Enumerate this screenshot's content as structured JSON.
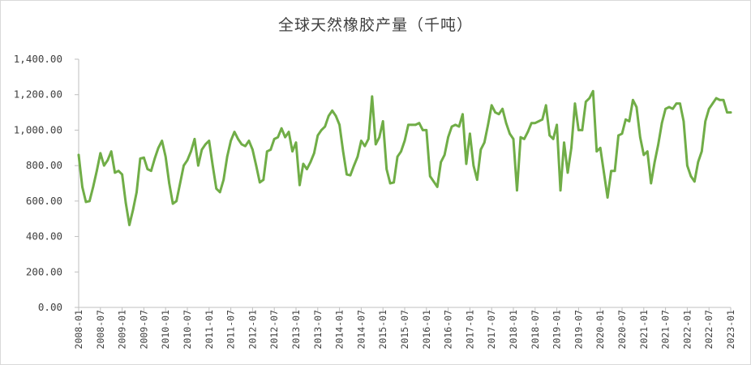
{
  "chart_data": {
    "type": "line",
    "title": "全球天然橡胶产量（千吨）",
    "xlabel": "",
    "ylabel": "",
    "ylim": [
      0,
      1400
    ],
    "grid": false,
    "legend": "none",
    "y_ticks": [
      "0.00",
      "200.00",
      "400.00",
      "600.00",
      "800.00",
      "1,000.00",
      "1,200.00",
      "1,400.00"
    ],
    "x_ticks": [
      "2008-01",
      "2008-07",
      "2009-01",
      "2009-07",
      "2010-01",
      "2010-07",
      "2011-01",
      "2011-07",
      "2012-01",
      "2012-07",
      "2013-01",
      "2013-07",
      "2014-01",
      "2014-07",
      "2015-01",
      "2015-07",
      "2016-01",
      "2016-07",
      "2017-01",
      "2017-07",
      "2018-01",
      "2018-07",
      "2019-01",
      "2019-07",
      "2020-01",
      "2020-07",
      "2021-01",
      "2021-07",
      "2022-01",
      "2022-07",
      "2023-01"
    ],
    "x_start": "2008-01",
    "x_end": "2023-01",
    "series": [
      {
        "name": "",
        "color": "#70ad47",
        "values": [
          860,
          680,
          595,
          600,
          680,
          770,
          870,
          800,
          830,
          880,
          760,
          770,
          750,
          590,
          465,
          550,
          650,
          840,
          845,
          780,
          770,
          840,
          900,
          940,
          850,
          700,
          585,
          600,
          700,
          800,
          830,
          880,
          950,
          800,
          890,
          920,
          940,
          800,
          670,
          650,
          720,
          850,
          940,
          990,
          950,
          920,
          910,
          940,
          890,
          800,
          705,
          720,
          880,
          890,
          950,
          960,
          1010,
          960,
          990,
          880,
          930,
          690,
          810,
          780,
          820,
          870,
          970,
          1000,
          1020,
          1080,
          1110,
          1080,
          1030,
          880,
          750,
          745,
          800,
          850,
          940,
          910,
          950,
          1190,
          920,
          960,
          1050,
          780,
          700,
          705,
          850,
          880,
          940,
          1030,
          1030,
          1030,
          1040,
          1000,
          1000,
          740,
          710,
          680,
          820,
          860,
          960,
          1020,
          1030,
          1020,
          1090,
          810,
          980,
          800,
          720,
          890,
          930,
          1030,
          1140,
          1100,
          1090,
          1120,
          1040,
          980,
          950,
          660,
          960,
          950,
          990,
          1040,
          1040,
          1050,
          1060,
          1140,
          970,
          950,
          1030,
          660,
          930,
          760,
          900,
          1150,
          1000,
          1000,
          1160,
          1180,
          1220,
          880,
          900,
          760,
          620,
          770,
          770,
          970,
          980,
          1060,
          1050,
          1170,
          1130,
          960,
          860,
          880,
          700,
          820,
          920,
          1040,
          1120,
          1130,
          1120,
          1150,
          1150,
          1050,
          800,
          740,
          710,
          820,
          880,
          1050,
          1120,
          1150,
          1180,
          1170,
          1170,
          1100,
          1100
        ]
      }
    ]
  }
}
